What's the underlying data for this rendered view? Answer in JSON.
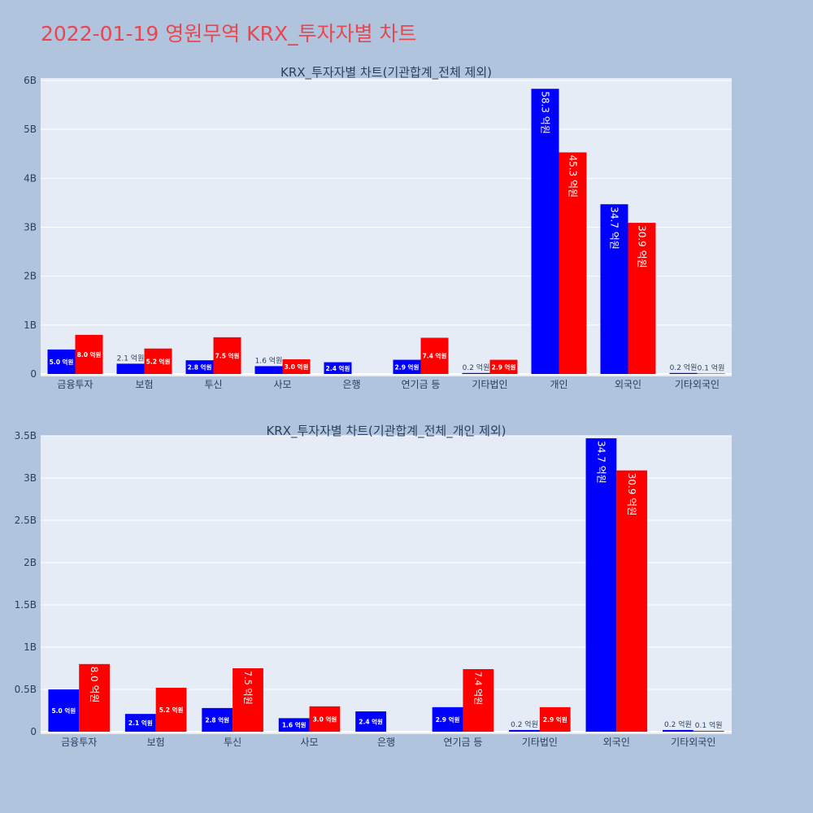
{
  "page_title": "2022-01-19 영원무역 KRX_투자자별 차트",
  "colors": {
    "background": "#b0c4de",
    "plot_bg": "#e5ecf6",
    "title": "#e8474f",
    "series_a": "#0000ff",
    "series_b": "#ff0000"
  },
  "chart_data": [
    {
      "type": "bar",
      "title": "KRX_투자자별 차트(기관합계_전체 제외)",
      "categories": [
        "금융투자",
        "보험",
        "투신",
        "사모",
        "은행",
        "연기금 등",
        "기타법인",
        "개인",
        "외국인",
        "기타외국인"
      ],
      "series": [
        {
          "values": [
            0.5,
            0.21,
            0.28,
            0.16,
            0.24,
            0.29,
            0.02,
            5.83,
            3.47,
            0.02
          ],
          "labels": [
            "5.0 억원",
            "2.1 억원",
            "2.8 억원",
            "1.6 억원",
            "2.4 억원",
            "2.9 억원",
            "0.2 억원",
            "58.3 억원",
            "34.7 억원",
            "0.2 억원"
          ]
        },
        {
          "values": [
            0.8,
            0.52,
            0.75,
            0.3,
            0.0,
            0.74,
            0.29,
            4.53,
            3.09,
            0.01
          ],
          "labels": [
            "8.0 억원",
            "5.2 억원",
            "7.5 억원",
            "3.0 억원",
            "",
            "7.4 억원",
            "2.9 억원",
            "45.3 억원",
            "30.9 억원",
            "0.1 억원"
          ]
        }
      ],
      "y_ticks": [
        {
          "value": 0,
          "label": "0"
        },
        {
          "value": 1,
          "label": "1B"
        },
        {
          "value": 2,
          "label": "2B"
        },
        {
          "value": 3,
          "label": "3B"
        },
        {
          "value": 4,
          "label": "4B"
        },
        {
          "value": 5,
          "label": "5B"
        },
        {
          "value": 6,
          "label": "6B"
        }
      ],
      "ylim": [
        0,
        6.05
      ],
      "grid": true
    },
    {
      "type": "bar",
      "title": "KRX_투자자별 차트(기관합계_전체_개인 제외)",
      "categories": [
        "금융투자",
        "보험",
        "투신",
        "사모",
        "은행",
        "연기금 등",
        "기타법인",
        "외국인",
        "기타외국인"
      ],
      "series": [
        {
          "values": [
            0.5,
            0.21,
            0.28,
            0.16,
            0.24,
            0.29,
            0.02,
            3.47,
            0.02
          ],
          "labels": [
            "5.0 억원",
            "2.1 억원",
            "2.8 억원",
            "1.6 억원",
            "2.4 억원",
            "2.9 억원",
            "0.2 억원",
            "34.7 억원",
            "0.2 억원"
          ]
        },
        {
          "values": [
            0.8,
            0.52,
            0.75,
            0.3,
            0.0,
            0.74,
            0.29,
            3.09,
            0.01
          ],
          "labels": [
            "8.0 억원",
            "5.2 억원",
            "7.5 억원",
            "3.0 억원",
            "",
            "7.4 억원",
            "2.9 억원",
            "30.9 억원",
            "0.1 억원"
          ]
        }
      ],
      "y_ticks": [
        {
          "value": 0,
          "label": "0"
        },
        {
          "value": 0.5,
          "label": "0.5B"
        },
        {
          "value": 1,
          "label": "1B"
        },
        {
          "value": 1.5,
          "label": "1.5B"
        },
        {
          "value": 2,
          "label": "2B"
        },
        {
          "value": 2.5,
          "label": "2.5B"
        },
        {
          "value": 3,
          "label": "3B"
        },
        {
          "value": 3.5,
          "label": "3.5B"
        }
      ],
      "ylim": [
        0,
        3.5
      ],
      "grid": true
    }
  ]
}
